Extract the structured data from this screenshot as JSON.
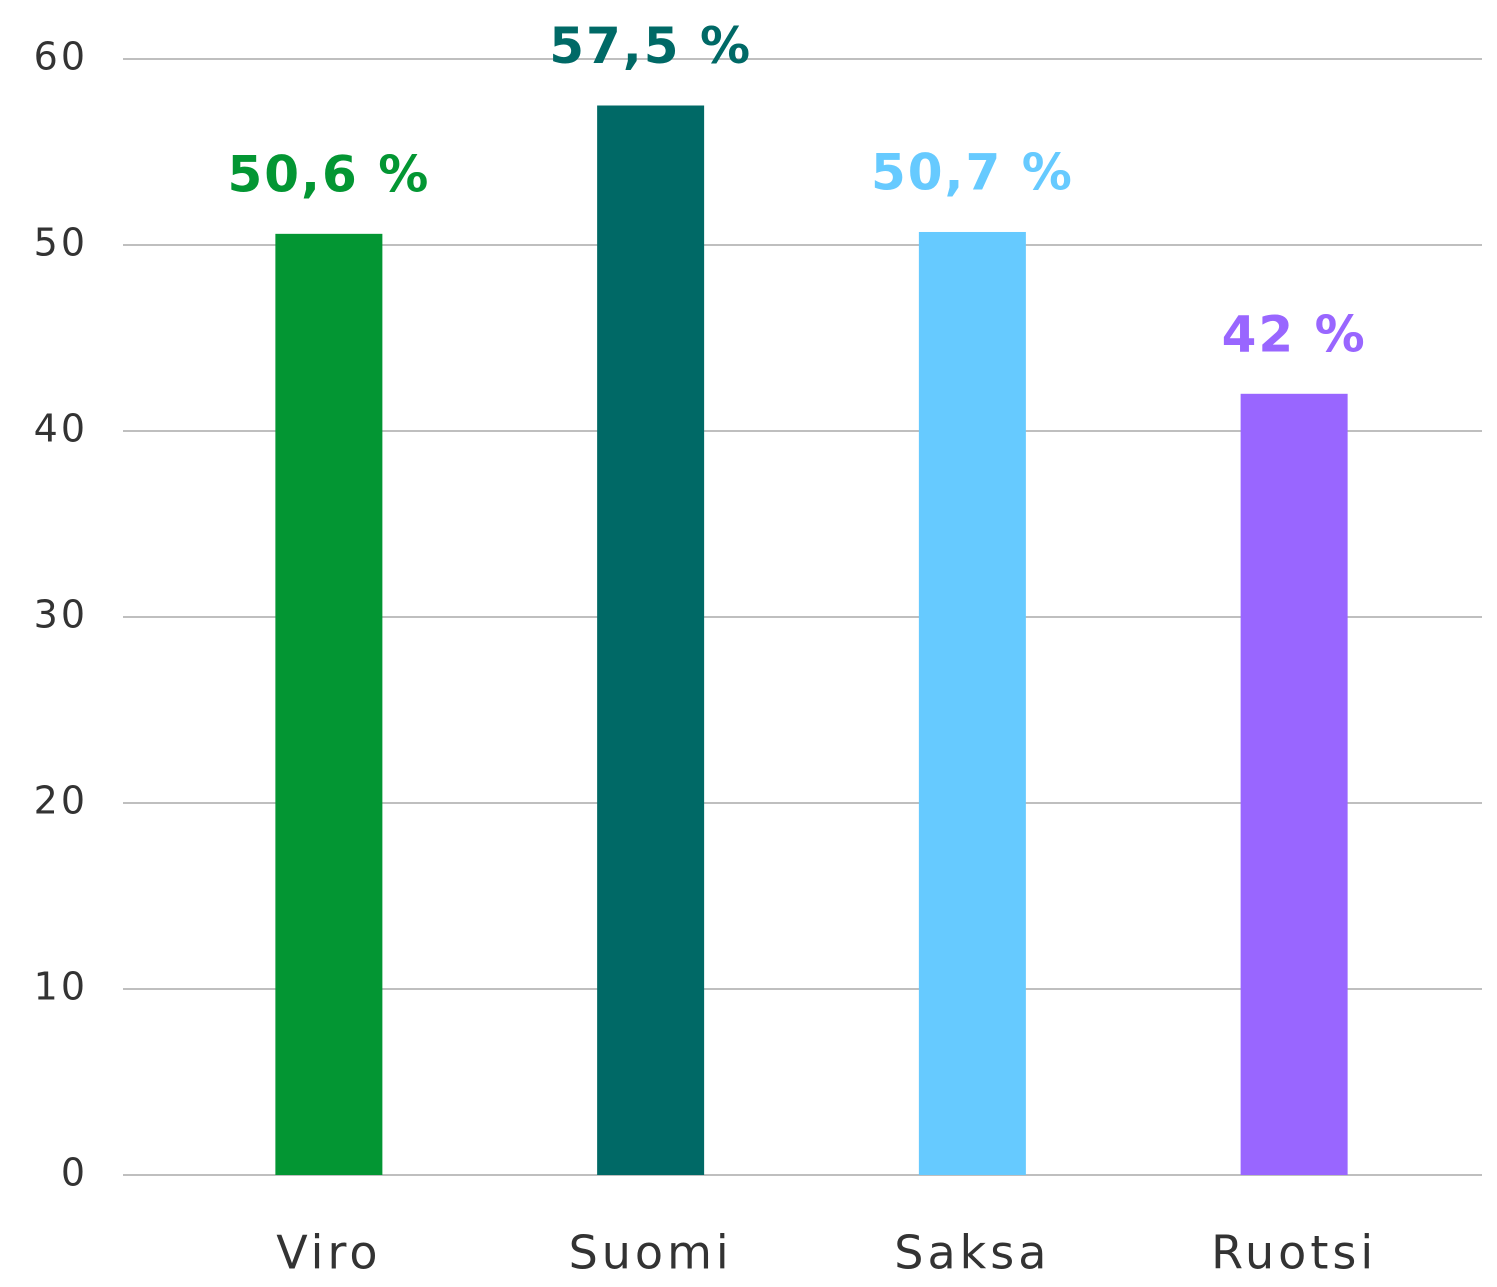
{
  "chart_data": {
    "type": "bar",
    "categories": [
      "Viro",
      "Suomi",
      "Saksa",
      "Ruotsi"
    ],
    "values": [
      50.6,
      57.5,
      50.7,
      42
    ],
    "value_labels": [
      "50,6 %",
      "57,5 %",
      "50,7 %",
      "42 %"
    ],
    "colors": [
      "#039633",
      "#006966",
      "#66caff",
      "#9966ff"
    ],
    "ylim": [
      0,
      60
    ],
    "yticks": [
      0,
      10,
      20,
      30,
      40,
      50,
      60
    ],
    "grid": true
  }
}
